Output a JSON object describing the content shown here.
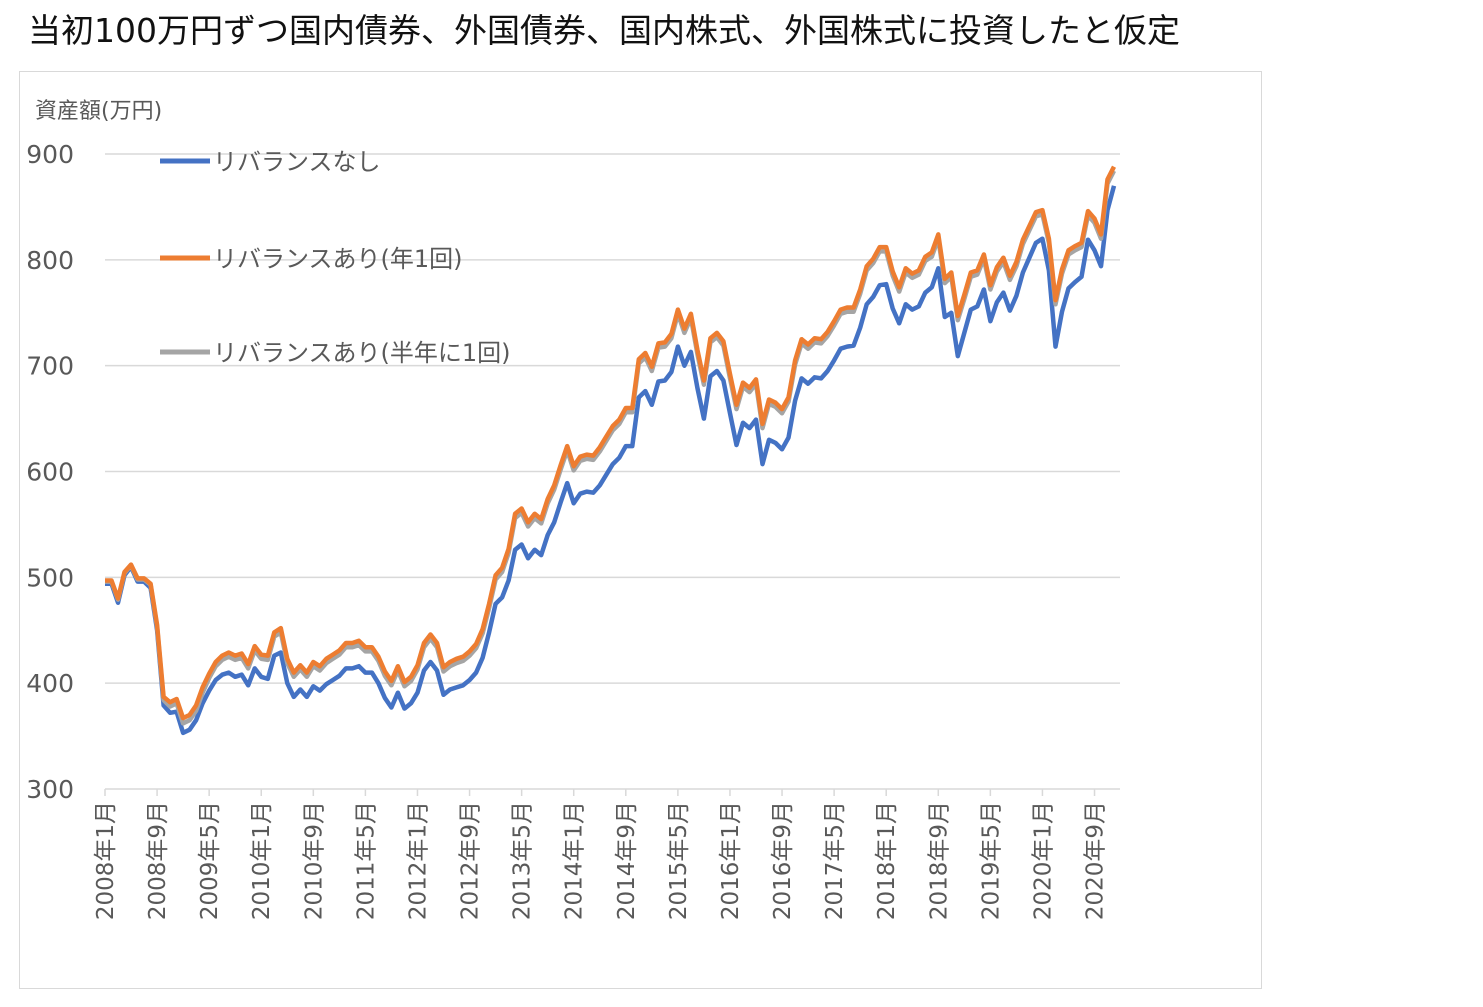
{
  "title": "当初100万円ずつ国内債券、外国債券、国内株式、外国株式に投資したと仮定",
  "chart_data": {
    "type": "line",
    "title": "当初100万円ずつ国内債券、外国債券、国内株式、外国株式に投資したと仮定",
    "ylabel": "資産額(万円)",
    "xlabel": "",
    "ylim": [
      300,
      900
    ],
    "yticks": [
      "300",
      "400",
      "500",
      "600",
      "700",
      "800",
      "900"
    ],
    "grid": "horizontal",
    "legend_position": "top-left",
    "x_frequency": "monthly",
    "x_start": "2008年1月",
    "x_end": "2020年12月",
    "x_tick_labels": [
      "2008年1月",
      "2008年9月",
      "2009年5月",
      "2010年1月",
      "2010年9月",
      "2011年5月",
      "2012年1月",
      "2012年9月",
      "2013年5月",
      "2014年1月",
      "2014年9月",
      "2015年5月",
      "2016年1月",
      "2016年9月",
      "2017年5月",
      "2018年1月",
      "2018年9月",
      "2019年5月",
      "2020年1月",
      "2020年9月"
    ],
    "series": [
      {
        "name": "リバランスなし",
        "color": "#4472C4",
        "values": [
          494,
          494,
          476,
          502,
          510,
          496,
          496,
          490,
          450,
          379,
          372,
          373,
          353,
          356,
          365,
          381,
          393,
          403,
          408,
          410,
          406,
          408,
          398,
          414,
          406,
          404,
          426,
          429,
          400,
          387,
          394,
          387,
          397,
          393,
          399,
          403,
          407,
          414,
          414,
          416,
          410,
          410,
          400,
          386,
          377,
          391,
          376,
          381,
          391,
          412,
          420,
          412,
          389,
          394,
          396,
          398,
          403,
          410,
          424,
          448,
          475,
          481,
          497,
          526,
          531,
          518,
          526,
          521,
          540,
          552,
          571,
          589,
          570,
          579,
          581,
          580,
          587,
          597,
          607,
          613,
          624,
          624,
          670,
          676,
          663,
          685,
          686,
          694,
          718,
          700,
          713,
          679,
          650,
          690,
          695,
          686,
          655,
          625,
          646,
          641,
          649,
          607,
          630,
          627,
          621,
          632,
          667,
          688,
          683,
          689,
          688,
          695,
          705,
          716,
          718,
          719,
          736,
          758,
          765,
          776,
          777,
          754,
          740,
          758,
          753,
          756,
          769,
          774,
          792,
          746,
          750,
          709,
          731,
          753,
          756,
          772,
          742,
          760,
          769,
          752,
          766,
          788,
          802,
          816,
          820,
          790,
          718,
          751,
          773,
          779,
          784,
          819,
          809,
          794,
          847,
          870
        ]
      },
      {
        "name": "リバランスあり(年1回)",
        "color": "#ED7D31",
        "values": [
          497,
          497,
          480,
          505,
          512,
          499,
          499,
          494,
          455,
          387,
          382,
          385,
          367,
          370,
          379,
          396,
          409,
          420,
          426,
          429,
          426,
          428,
          418,
          435,
          427,
          426,
          448,
          452,
          423,
          410,
          417,
          410,
          420,
          416,
          423,
          427,
          431,
          438,
          438,
          440,
          434,
          434,
          425,
          411,
          402,
          416,
          401,
          406,
          417,
          438,
          446,
          438,
          415,
          420,
          423,
          425,
          430,
          437,
          451,
          475,
          502,
          509,
          527,
          560,
          565,
          552,
          560,
          555,
          574,
          587,
          606,
          624,
          605,
          614,
          616,
          615,
          623,
          633,
          643,
          649,
          660,
          660,
          706,
          712,
          699,
          721,
          722,
          730,
          753,
          735,
          749,
          715,
          686,
          726,
          731,
          723,
          692,
          663,
          684,
          679,
          687,
          645,
          668,
          665,
          659,
          670,
          705,
          725,
          720,
          726,
          725,
          732,
          742,
          753,
          755,
          755,
          772,
          794,
          801,
          812,
          812,
          789,
          774,
          792,
          787,
          790,
          803,
          807,
          824,
          782,
          788,
          747,
          767,
          788,
          790,
          805,
          776,
          793,
          802,
          785,
          798,
          819,
          832,
          845,
          847,
          820,
          762,
          791,
          809,
          813,
          816,
          846,
          839,
          824,
          876,
          888
        ]
      },
      {
        "name": "リバランスあり(半年に1回)",
        "color": "#A5A5A5",
        "values": [
          496,
          496,
          479,
          504,
          511,
          498,
          498,
          493,
          453,
          384,
          378,
          381,
          362,
          365,
          374,
          391,
          405,
          416,
          422,
          425,
          422,
          424,
          414,
          431,
          423,
          422,
          444,
          448,
          419,
          406,
          413,
          406,
          416,
          412,
          419,
          423,
          427,
          434,
          434,
          436,
          430,
          430,
          421,
          407,
          398,
          412,
          397,
          402,
          413,
          434,
          442,
          434,
          411,
          416,
          419,
          421,
          426,
          433,
          447,
          471,
          498,
          505,
          523,
          556,
          561,
          548,
          556,
          551,
          570,
          583,
          602,
          620,
          601,
          610,
          612,
          611,
          619,
          629,
          639,
          645,
          656,
          656,
          702,
          708,
          695,
          717,
          718,
          726,
          749,
          731,
          745,
          711,
          682,
          722,
          727,
          719,
          688,
          659,
          680,
          675,
          683,
          641,
          664,
          661,
          655,
          666,
          701,
          721,
          716,
          722,
          721,
          728,
          738,
          749,
          751,
          751,
          768,
          790,
          797,
          808,
          808,
          785,
          770,
          788,
          783,
          786,
          799,
          803,
          820,
          778,
          784,
          743,
          763,
          784,
          786,
          801,
          772,
          789,
          798,
          781,
          794,
          815,
          828,
          841,
          843,
          816,
          758,
          787,
          805,
          809,
          812,
          842,
          835,
          820,
          872,
          884
        ]
      }
    ]
  }
}
